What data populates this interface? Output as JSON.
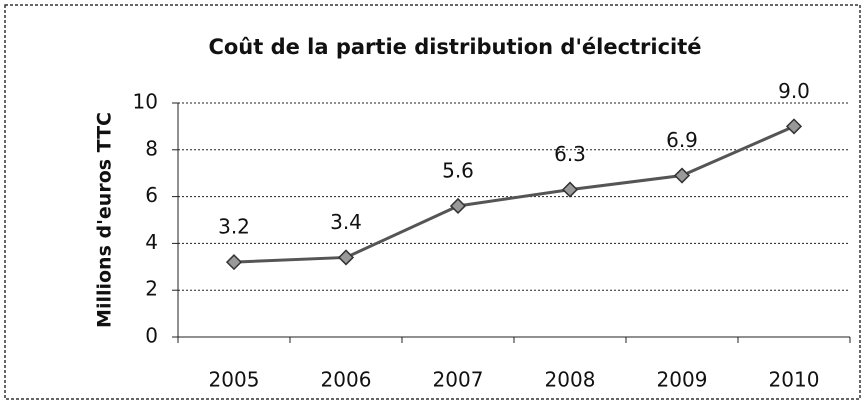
{
  "chart_data": {
    "type": "line",
    "title": "Coût de la partie distribution d'électricité",
    "y_label": "Millions d'euros TTC",
    "categories": [
      "2005",
      "2006",
      "2007",
      "2008",
      "2009",
      "2010"
    ],
    "values": [
      3.2,
      3.4,
      5.6,
      6.3,
      6.9,
      9.0
    ],
    "value_labels": [
      "3.2",
      "3.4",
      "5.6",
      "6.3",
      "6.9",
      "9.0"
    ],
    "color": "#555555",
    "ylim": [
      0,
      10
    ],
    "yticks": [
      0,
      2,
      4,
      6,
      8,
      10
    ],
    "grid": true
  }
}
